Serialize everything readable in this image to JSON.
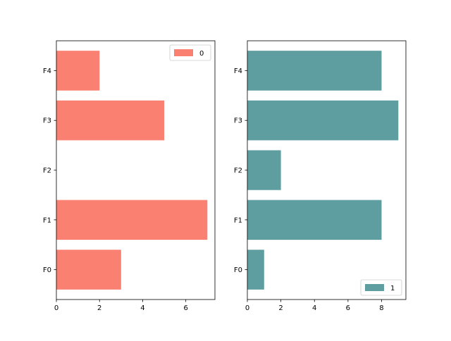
{
  "chart_data": [
    {
      "type": "bar",
      "orientation": "horizontal",
      "categories": [
        "F0",
        "F1",
        "F2",
        "F3",
        "F4"
      ],
      "series": [
        {
          "name": "0",
          "values": [
            3,
            7,
            0,
            5,
            2
          ],
          "color": "#fa8072"
        }
      ],
      "xlim": [
        0,
        7.35
      ],
      "xticks": [
        0,
        2,
        4,
        6
      ],
      "grid": false,
      "legend_position": "upper right"
    },
    {
      "type": "bar",
      "orientation": "horizontal",
      "categories": [
        "F0",
        "F1",
        "F2",
        "F3",
        "F4"
      ],
      "series": [
        {
          "name": "1",
          "values": [
            1,
            8,
            2,
            9,
            8
          ],
          "color": "#5f9ea0"
        }
      ],
      "xlim": [
        0,
        9.45
      ],
      "xticks": [
        0,
        2,
        4,
        6,
        8
      ],
      "grid": false,
      "legend_position": "lower right"
    }
  ]
}
